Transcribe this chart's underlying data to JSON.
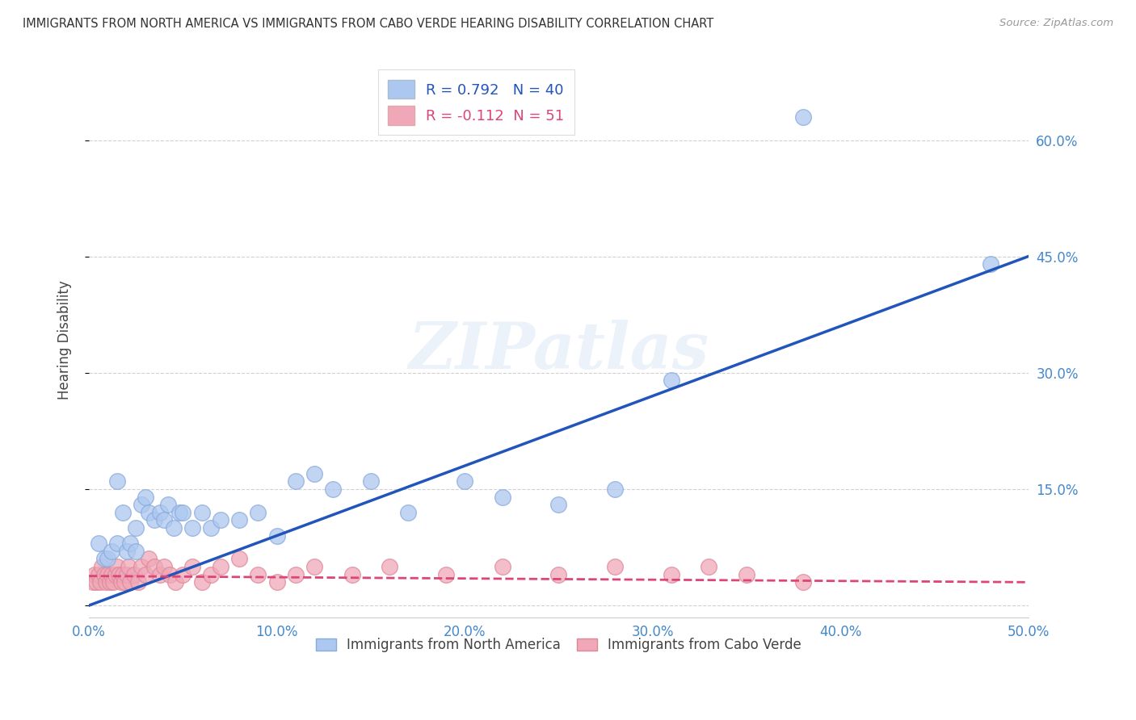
{
  "title": "IMMIGRANTS FROM NORTH AMERICA VS IMMIGRANTS FROM CABO VERDE HEARING DISABILITY CORRELATION CHART",
  "source": "Source: ZipAtlas.com",
  "ylabel": "Hearing Disability",
  "xlim": [
    0.0,
    0.5
  ],
  "ylim": [
    -0.015,
    0.7
  ],
  "yticks": [
    0.0,
    0.15,
    0.3,
    0.45,
    0.6
  ],
  "ytick_labels": [
    "",
    "15.0%",
    "30.0%",
    "45.0%",
    "60.0%"
  ],
  "xticks": [
    0.0,
    0.1,
    0.2,
    0.3,
    0.4,
    0.5
  ],
  "xtick_labels": [
    "0.0%",
    "10.0%",
    "20.0%",
    "30.0%",
    "40.0%",
    "50.0%"
  ],
  "blue_R": 0.792,
  "blue_N": 40,
  "pink_R": -0.112,
  "pink_N": 51,
  "blue_color": "#adc8f0",
  "blue_edge_color": "#88aadd",
  "blue_line_color": "#2255bb",
  "pink_color": "#f0a8b8",
  "pink_edge_color": "#dd8899",
  "pink_line_color": "#dd4477",
  "watermark_text": "ZIPatlas",
  "blue_scatter_x": [
    0.005,
    0.008,
    0.01,
    0.012,
    0.015,
    0.015,
    0.018,
    0.02,
    0.022,
    0.025,
    0.025,
    0.028,
    0.03,
    0.032,
    0.035,
    0.038,
    0.04,
    0.042,
    0.045,
    0.048,
    0.05,
    0.055,
    0.06,
    0.065,
    0.07,
    0.08,
    0.09,
    0.1,
    0.11,
    0.12,
    0.13,
    0.15,
    0.17,
    0.2,
    0.22,
    0.25,
    0.28,
    0.31,
    0.38,
    0.48
  ],
  "blue_scatter_y": [
    0.08,
    0.06,
    0.06,
    0.07,
    0.16,
    0.08,
    0.12,
    0.07,
    0.08,
    0.1,
    0.07,
    0.13,
    0.14,
    0.12,
    0.11,
    0.12,
    0.11,
    0.13,
    0.1,
    0.12,
    0.12,
    0.1,
    0.12,
    0.1,
    0.11,
    0.11,
    0.12,
    0.09,
    0.16,
    0.17,
    0.15,
    0.16,
    0.12,
    0.16,
    0.14,
    0.13,
    0.15,
    0.29,
    0.63,
    0.44
  ],
  "pink_scatter_x": [
    0.002,
    0.003,
    0.004,
    0.005,
    0.006,
    0.007,
    0.008,
    0.009,
    0.01,
    0.011,
    0.012,
    0.013,
    0.014,
    0.015,
    0.016,
    0.017,
    0.018,
    0.019,
    0.02,
    0.021,
    0.022,
    0.024,
    0.026,
    0.028,
    0.03,
    0.032,
    0.035,
    0.038,
    0.04,
    0.043,
    0.046,
    0.05,
    0.055,
    0.06,
    0.065,
    0.07,
    0.08,
    0.09,
    0.1,
    0.11,
    0.12,
    0.14,
    0.16,
    0.19,
    0.22,
    0.25,
    0.28,
    0.31,
    0.33,
    0.35,
    0.38
  ],
  "pink_scatter_y": [
    0.03,
    0.04,
    0.03,
    0.04,
    0.03,
    0.05,
    0.04,
    0.03,
    0.04,
    0.03,
    0.04,
    0.03,
    0.04,
    0.05,
    0.04,
    0.03,
    0.04,
    0.03,
    0.04,
    0.05,
    0.03,
    0.04,
    0.03,
    0.05,
    0.04,
    0.06,
    0.05,
    0.04,
    0.05,
    0.04,
    0.03,
    0.04,
    0.05,
    0.03,
    0.04,
    0.05,
    0.06,
    0.04,
    0.03,
    0.04,
    0.05,
    0.04,
    0.05,
    0.04,
    0.05,
    0.04,
    0.05,
    0.04,
    0.05,
    0.04,
    0.03
  ],
  "blue_trend_x": [
    0.0,
    0.5
  ],
  "blue_trend_y": [
    0.0,
    0.45
  ],
  "pink_trend_x": [
    0.0,
    0.5
  ],
  "pink_trend_y": [
    0.038,
    0.03
  ]
}
